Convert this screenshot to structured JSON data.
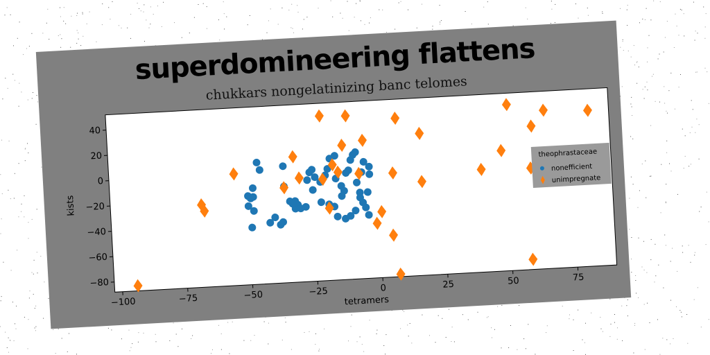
{
  "chart_data": {
    "type": "scatter",
    "suptitle": "superdomineering flattens",
    "title": "chukkars nongelatinizing banc telomes",
    "xlabel": "tetramers",
    "ylabel": "kists",
    "xlim": [
      -103,
      90
    ],
    "ylim": [
      -88,
      52
    ],
    "xticks": [
      -100,
      -75,
      -50,
      -25,
      0,
      25,
      50,
      75
    ],
    "yticks": [
      -80,
      -60,
      -40,
      -20,
      0,
      20,
      40
    ],
    "xtick_labels": [
      "−100",
      "−75",
      "−50",
      "−25",
      "0",
      "25",
      "50",
      "75"
    ],
    "ytick_labels": [
      "−80",
      "−60",
      "−40",
      "−20",
      "0",
      "20",
      "40"
    ],
    "grid": false,
    "legend": {
      "title": "theophrastaceae",
      "placement": "center-right"
    },
    "series": [
      {
        "name": "nonefficient",
        "marker": "circle",
        "color": "#1f77b4",
        "points": [
          [
            -46,
            8
          ],
          [
            -45,
            2
          ],
          [
            -48,
            -12
          ],
          [
            -50,
            -18
          ],
          [
            -49,
            -20
          ],
          [
            -48,
            -19
          ],
          [
            -50,
            -26
          ],
          [
            -48,
            -30
          ],
          [
            -49,
            -43
          ],
          [
            -42,
            -40
          ],
          [
            -38,
            -42
          ],
          [
            -37,
            -40
          ],
          [
            -36,
            4
          ],
          [
            -34,
            -24
          ],
          [
            -32,
            -24
          ],
          [
            -31,
            -27
          ],
          [
            -32,
            -30
          ],
          [
            -30,
            -30
          ],
          [
            -28,
            -29
          ],
          [
            -25,
            -16
          ],
          [
            -27,
            -8
          ],
          [
            -26,
            -2
          ],
          [
            -25,
            0
          ],
          [
            -24,
            -6
          ],
          [
            -22,
            -10
          ],
          [
            -20,
            -5
          ],
          [
            -19,
            0
          ],
          [
            -18,
            8
          ],
          [
            -16,
            10
          ],
          [
            -16,
            -8
          ],
          [
            -14,
            -14
          ],
          [
            -13,
            -18
          ],
          [
            -12,
            -4
          ],
          [
            -11,
            -2
          ],
          [
            -10,
            6
          ],
          [
            -9,
            10
          ],
          [
            -8,
            -12
          ],
          [
            -7,
            -20
          ],
          [
            -7,
            -24
          ],
          [
            -6,
            -4
          ],
          [
            -5,
            4
          ],
          [
            -3,
            -6
          ],
          [
            -3,
            0
          ],
          [
            -4,
            -20
          ],
          [
            -6,
            -28
          ],
          [
            -5,
            -32
          ],
          [
            -4,
            -38
          ],
          [
            -9,
            -34
          ],
          [
            -11,
            -38
          ],
          [
            -13,
            -40
          ],
          [
            -16,
            -38
          ],
          [
            -17,
            -30
          ],
          [
            -19,
            -28
          ],
          [
            -14,
            -22
          ],
          [
            -22,
            -26
          ],
          [
            -8,
            12
          ],
          [
            -30,
            -30
          ],
          [
            -36,
            -12
          ],
          [
            -33,
            -26
          ],
          [
            -40,
            -36
          ]
        ]
      },
      {
        "name": "unimpregnate",
        "marker": "diamond",
        "color": "#ff7f0e",
        "points": [
          [
            -94,
            -84
          ],
          [
            -68,
            -23
          ],
          [
            -67,
            -28
          ],
          [
            -55,
            0
          ],
          [
            -36,
            -13
          ],
          [
            -32,
            11
          ],
          [
            -30,
            -6
          ],
          [
            -21,
            -8
          ],
          [
            -19,
            -31
          ],
          [
            -21,
            42
          ],
          [
            -17,
            3
          ],
          [
            -15,
            -3
          ],
          [
            -13,
            18
          ],
          [
            -11,
            41
          ],
          [
            -7,
            -5
          ],
          [
            -5,
            21
          ],
          [
            -1,
            -45
          ],
          [
            1,
            -36
          ],
          [
            5,
            -55
          ],
          [
            6,
            -6
          ],
          [
            7,
            -86
          ],
          [
            8,
            37
          ],
          [
            17,
            24
          ],
          [
            17,
            -14
          ],
          [
            40,
            -7
          ],
          [
            48,
            7
          ],
          [
            51,
            43
          ],
          [
            58,
            -80
          ],
          [
            59,
            -8
          ],
          [
            60,
            25
          ],
          [
            65,
            37
          ],
          [
            82,
            35
          ]
        ]
      }
    ]
  }
}
